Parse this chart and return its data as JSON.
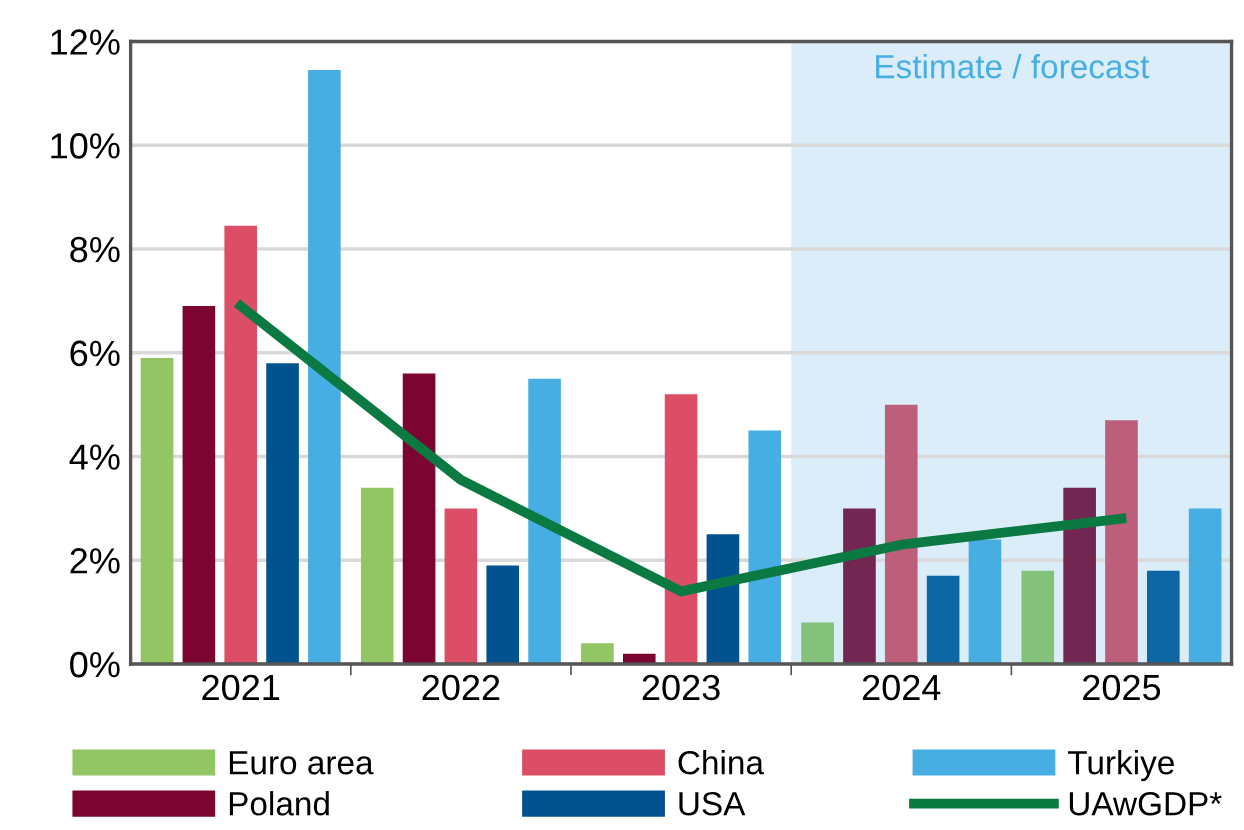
{
  "chart_data": {
    "type": "bar",
    "categories": [
      "2021",
      "2022",
      "2023",
      "2024",
      "2025"
    ],
    "series": [
      {
        "name": "Euro area",
        "color": "#92c564",
        "colors": [
          "#92c564",
          "#92c564",
          "#92c564",
          "#82c27a",
          "#82c27a"
        ],
        "values": [
          5.9,
          3.4,
          0.4,
          0.8,
          1.8
        ]
      },
      {
        "name": "Poland",
        "color": "#7b0530",
        "colors": [
          "#7b0530",
          "#7b0530",
          "#7b0530",
          "#722652",
          "#722652"
        ],
        "values": [
          6.9,
          5.6,
          0.2,
          3.0,
          3.4
        ]
      },
      {
        "name": "China",
        "color": "#dc4d66",
        "colors": [
          "#dc4d66",
          "#dc4d66",
          "#dc4d66",
          "#bd5e7a",
          "#bd5e7a"
        ],
        "values": [
          8.45,
          3.0,
          5.2,
          5.0,
          4.7
        ]
      },
      {
        "name": "USA",
        "color": "#00538f",
        "colors": [
          "#00538f",
          "#00538f",
          "#00538f",
          "#0f66a5",
          "#0f66a5"
        ],
        "values": [
          5.8,
          1.9,
          2.5,
          1.7,
          1.8
        ]
      },
      {
        "name": "Turkiye",
        "color": "#47aee4",
        "values": [
          11.45,
          5.5,
          4.5,
          2.4,
          3.0
        ]
      },
      {
        "name": "UAwGDP*",
        "type": "line",
        "color": "#0a7a42",
        "values": [
          6.9,
          3.55,
          1.4,
          2.3,
          2.8
        ]
      }
    ],
    "ylim": [
      0,
      12
    ],
    "yticks": [
      {
        "value": 0,
        "label": "0%"
      },
      {
        "value": 2,
        "label": "2%"
      },
      {
        "value": 4,
        "label": "4%"
      },
      {
        "value": 6,
        "label": "6%"
      },
      {
        "value": 8,
        "label": "8%"
      },
      {
        "value": 10,
        "label": "10%"
      },
      {
        "value": 12,
        "label": "12%"
      }
    ],
    "bands": [
      {
        "axis": "x",
        "from": "2024",
        "to": "2025",
        "label": "Estimate / forecast",
        "color": "#dbedf8"
      }
    ],
    "grid": "y",
    "legend": "bottom",
    "marker": "none",
    "line_style": "solid"
  }
}
